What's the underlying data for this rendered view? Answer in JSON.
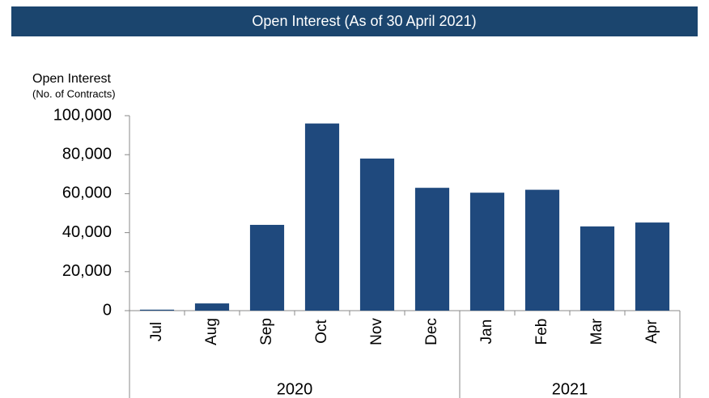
{
  "chart_data": {
    "type": "bar",
    "title": "Open Interest (As of 30 April 2021)",
    "y_label": "Open Interest",
    "y_sublabel": "(No. of Contracts)",
    "categories": [
      "Jul",
      "Aug",
      "Sep",
      "Oct",
      "Nov",
      "Dec",
      "Jan",
      "Feb",
      "Mar",
      "Apr"
    ],
    "year_groups": [
      {
        "name": "2020",
        "span": 6
      },
      {
        "name": "2021",
        "span": 4
      }
    ],
    "values": [
      500,
      3700,
      44000,
      96000,
      78000,
      63000,
      60500,
      62000,
      43200,
      45200
    ],
    "color": "#1f497d",
    "header_color": "#1b456e",
    "ylim": [
      0,
      100000
    ],
    "yticks": [
      0,
      {
        "value": 20000,
        "label": "20,000"
      },
      {
        "value": 40000,
        "label": "40,000"
      },
      {
        "value": 60000,
        "label": "60,000"
      },
      {
        "value": 80000,
        "label": "80,000"
      },
      {
        "value": 100000,
        "label": "100,000"
      }
    ],
    "grid": false
  }
}
